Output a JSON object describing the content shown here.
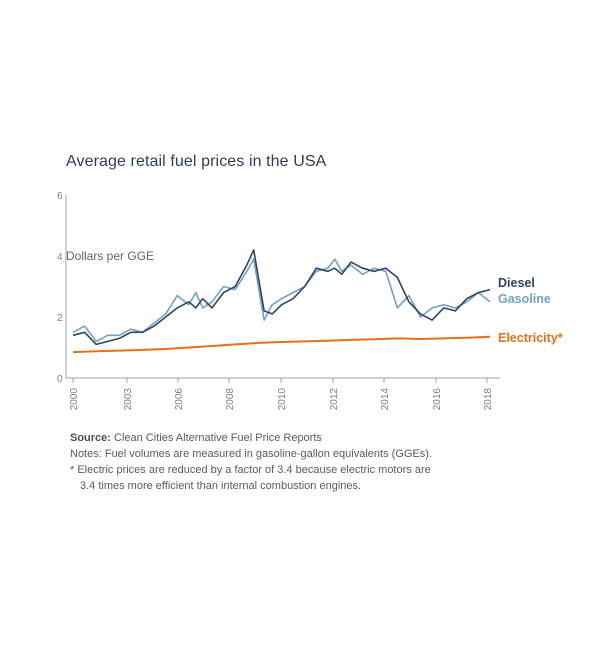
{
  "colors": {
    "diesel": "#2f4461",
    "gasoline": "#6fa3c9",
    "electricity": "#e8701a",
    "axis": "#9aa1a8",
    "tick_text": "#7a7f86"
  },
  "chart_data": {
    "type": "line",
    "title": "Average retail fuel prices in the USA",
    "ylabel": "Dollars per GGE",
    "xlabel": "",
    "xlim": [
      2000,
      2018
    ],
    "ylim": [
      0,
      6
    ],
    "yticks": [
      "0",
      "2",
      "4",
      "6"
    ],
    "xticks": [
      "2000",
      "2003",
      "2006",
      "2008",
      "2010",
      "2012",
      "2014",
      "2016",
      "2018"
    ],
    "grid": false,
    "series": [
      {
        "name": "Diesel",
        "x": [
          2000,
          2000.5,
          2001,
          2001.5,
          2002,
          2002.5,
          2003,
          2003.5,
          2004,
          2004.5,
          2005,
          2005.3,
          2005.6,
          2006,
          2006.5,
          2007,
          2007.5,
          2007.8,
          2008.25,
          2008.6,
          2009,
          2009.5,
          2010,
          2010.5,
          2011,
          2011.3,
          2011.6,
          2012,
          2012.5,
          2013,
          2013.5,
          2014,
          2014.5,
          2015,
          2015.5,
          2016,
          2016.5,
          2017,
          2017.5,
          2018
        ],
        "values": [
          1.4,
          1.5,
          1.1,
          1.2,
          1.3,
          1.5,
          1.5,
          1.7,
          2.0,
          2.3,
          2.5,
          2.3,
          2.6,
          2.3,
          2.8,
          3.0,
          3.7,
          4.2,
          2.2,
          2.1,
          2.4,
          2.6,
          3.0,
          3.6,
          3.5,
          3.6,
          3.4,
          3.8,
          3.6,
          3.5,
          3.6,
          3.3,
          2.5,
          2.1,
          1.9,
          2.3,
          2.2,
          2.6,
          2.8,
          2.9
        ]
      },
      {
        "name": "Gasoline",
        "x": [
          2000,
          2000.5,
          2001,
          2001.5,
          2002,
          2002.5,
          2003,
          2003.5,
          2004,
          2004.5,
          2005,
          2005.3,
          2005.6,
          2006,
          2006.5,
          2007,
          2007.5,
          2007.8,
          2008.25,
          2008.6,
          2009,
          2009.5,
          2010,
          2010.5,
          2011,
          2011.3,
          2011.6,
          2012,
          2012.5,
          2013,
          2013.5,
          2014,
          2014.5,
          2015,
          2015.5,
          2016,
          2016.5,
          2017,
          2017.5,
          2018
        ],
        "values": [
          1.5,
          1.7,
          1.2,
          1.4,
          1.4,
          1.6,
          1.5,
          1.8,
          2.1,
          2.7,
          2.4,
          2.8,
          2.3,
          2.5,
          3.0,
          2.9,
          3.5,
          3.9,
          1.9,
          2.4,
          2.6,
          2.8,
          3.0,
          3.5,
          3.6,
          3.9,
          3.5,
          3.7,
          3.4,
          3.6,
          3.5,
          2.3,
          2.7,
          2.0,
          2.3,
          2.4,
          2.3,
          2.5,
          2.8,
          2.5
        ]
      },
      {
        "name": "Electricity*",
        "x": [
          2000,
          2001,
          2002,
          2003,
          2004,
          2005,
          2006,
          2007,
          2008,
          2009,
          2010,
          2011,
          2012,
          2013,
          2014,
          2015,
          2016,
          2017,
          2018
        ],
        "values": [
          0.85,
          0.88,
          0.9,
          0.92,
          0.95,
          1.0,
          1.05,
          1.1,
          1.15,
          1.18,
          1.2,
          1.22,
          1.25,
          1.27,
          1.3,
          1.28,
          1.3,
          1.32,
          1.35
        ]
      }
    ]
  },
  "notes": {
    "source_label": "Source:",
    "source_text": "Clean Cities Alternative Fuel Price Reports",
    "line1": "Notes: Fuel volumes are measured in gasoline-gallon equivalents (GGEs).",
    "line2": "* Electric prices are reduced by a factor of 3.4 because electric motors are",
    "line3": "3.4 times more efficient than internal combustion engines."
  }
}
